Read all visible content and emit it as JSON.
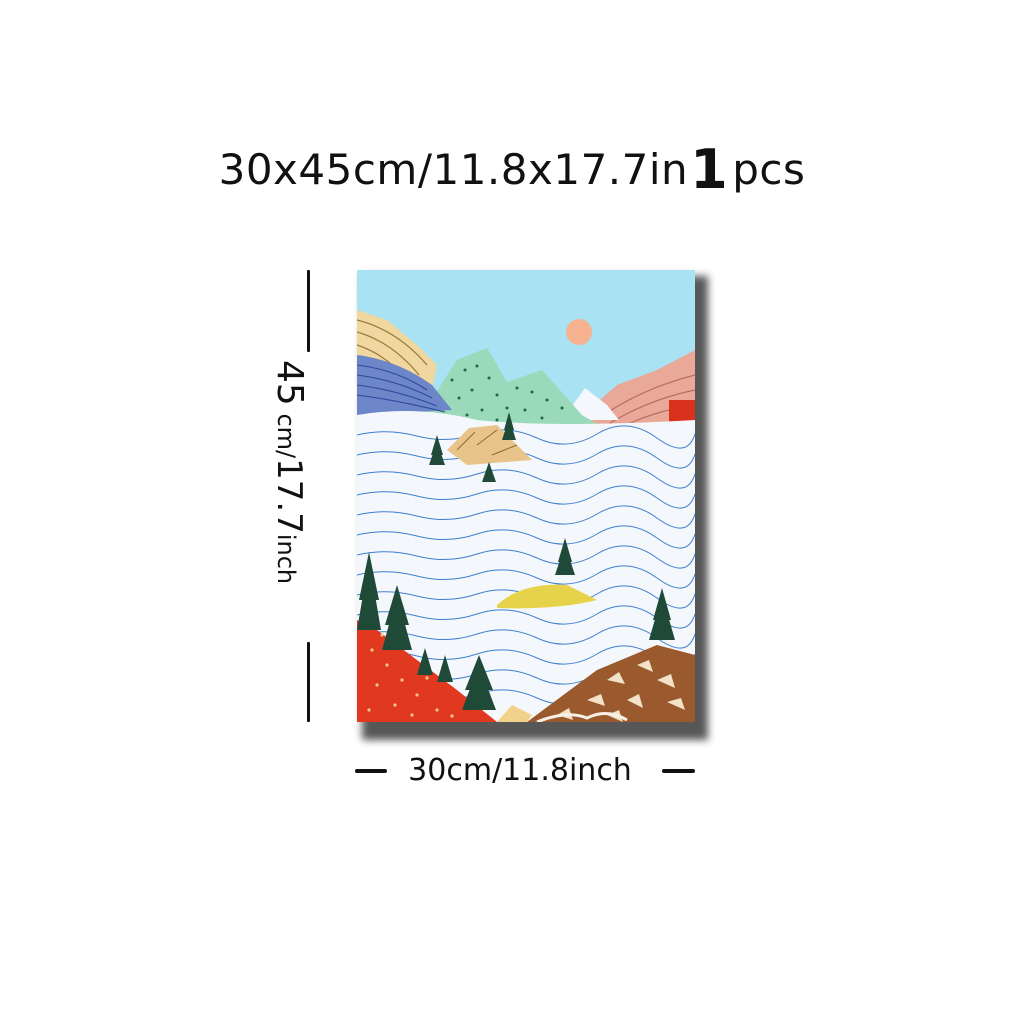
{
  "header": {
    "size_text": "30x45cm/11.8x17.7in",
    "quantity_number": "1",
    "quantity_unit": "pcs"
  },
  "dimensions": {
    "height_value": "45",
    "height_unit_cm": "cm/",
    "height_inch_value": "17.7",
    "height_inch_unit": "inch",
    "width_label": "30cm/11.8inch"
  },
  "artwork": {
    "colors": {
      "sky": "#a9e2f2",
      "sun": "#f6b290",
      "clouds": "#f4f8fc",
      "cloud_lines": "#3f7fd0",
      "left_mountain": "#f0d7a0",
      "blue_ridge": "#6c86c8",
      "green_mountain": "#9ad9b9",
      "pink_mountain": "#e9a898",
      "red_hill": "#e0391f",
      "brown_hill": "#9b5a2e",
      "island": "#e6d34a",
      "trees": "#1f4a38"
    }
  }
}
